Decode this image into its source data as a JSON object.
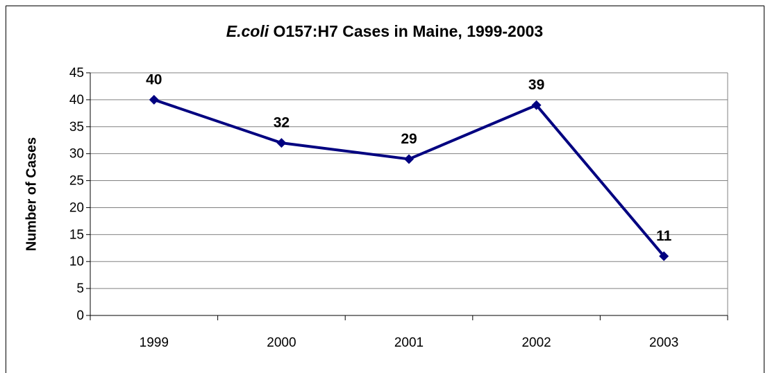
{
  "chart_data": {
    "type": "line",
    "title": "E.coli O157:H7 Cases in Maine, 1999-2003",
    "y_label": "Number of Cases",
    "categories": [
      "1999",
      "2000",
      "2001",
      "2002",
      "2003"
    ],
    "series": [
      {
        "name": "Cases",
        "color": "#000080",
        "values": [
          40,
          32,
          29,
          39,
          11
        ]
      }
    ],
    "ylim": [
      0,
      45
    ],
    "yticks": [
      0,
      5,
      10,
      15,
      20,
      25,
      30,
      35,
      40,
      45
    ],
    "grid": true,
    "legend": false
  }
}
